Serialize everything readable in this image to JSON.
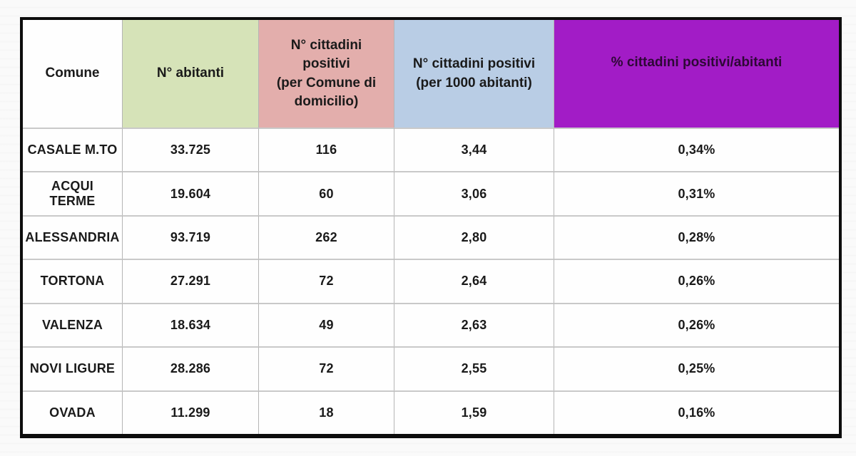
{
  "colors": {
    "page_bg": "#fafafa",
    "cell_bg": "#fefefe",
    "text": "#1a1a1a",
    "border": "#0d0d0d",
    "grid_v": "#b5b5b5",
    "grid_h": "#c9c9c9",
    "header_green": "#d6e3b8",
    "header_pink": "#e3aeac",
    "header_blue": "#b9cde5",
    "header_purple": "#a21cc6",
    "purple_text": "#2e0836"
  },
  "table": {
    "headers": [
      {
        "label": "Comune"
      },
      {
        "label": "N° abitanti"
      },
      {
        "label": "N° cittadini\npositivi\n(per Comune di\ndomicilio)"
      },
      {
        "label": "N° cittadini positivi\n(per 1000 abitanti)"
      },
      {
        "label": "% cittadini positivi/abitanti"
      }
    ],
    "rows": [
      {
        "comune": "CASALE M.TO",
        "abitanti": "33.725",
        "positivi": "116",
        "per_1000": "3,44",
        "percent": "0,34%"
      },
      {
        "comune": "ACQUI TERME",
        "abitanti": "19.604",
        "positivi": "60",
        "per_1000": "3,06",
        "percent": "0,31%"
      },
      {
        "comune": "ALESSANDRIA",
        "abitanti": "93.719",
        "positivi": "262",
        "per_1000": "2,80",
        "percent": "0,28%"
      },
      {
        "comune": "TORTONA",
        "abitanti": "27.291",
        "positivi": "72",
        "per_1000": "2,64",
        "percent": "0,26%"
      },
      {
        "comune": "VALENZA",
        "abitanti": "18.634",
        "positivi": "49",
        "per_1000": "2,63",
        "percent": "0,26%"
      },
      {
        "comune": "NOVI LIGURE",
        "abitanti": "28.286",
        "positivi": "72",
        "per_1000": "2,55",
        "percent": "0,25%"
      },
      {
        "comune": "OVADA",
        "abitanti": "11.299",
        "positivi": "18",
        "per_1000": "1,59",
        "percent": "0,16%"
      }
    ]
  }
}
